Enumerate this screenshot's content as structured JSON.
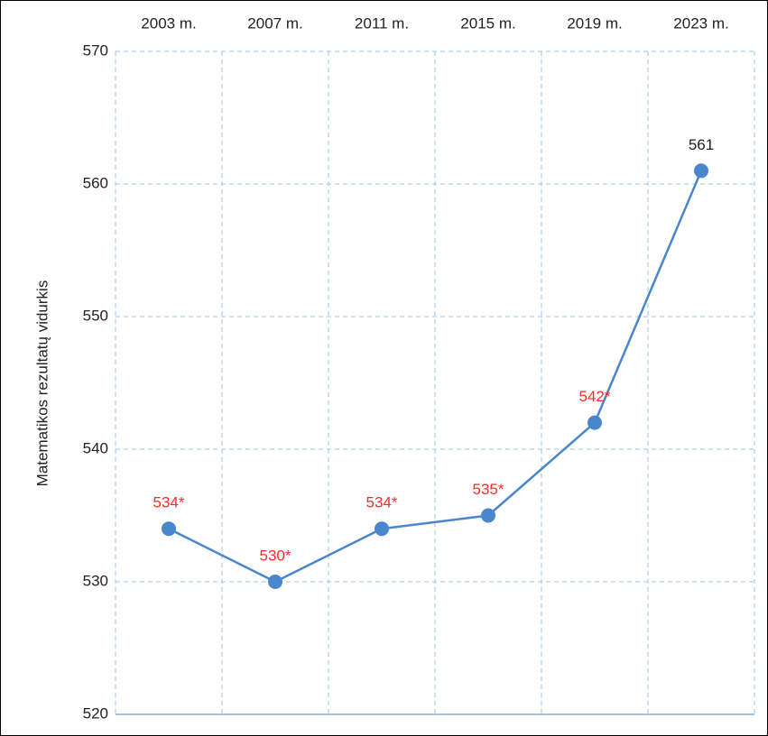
{
  "chart_data": {
    "type": "line",
    "y_label": "Matematikos rezultatų vidurkis",
    "categories": [
      "2003 m.",
      "2007 m.",
      "2011 m.",
      "2015 m.",
      "2019 m.",
      "2023 m."
    ],
    "series": [
      {
        "color": "#4a86cc",
        "values": [
          534,
          530,
          534,
          535,
          542,
          561
        ],
        "value_labels": [
          "534*",
          "530*",
          "534*",
          "535*",
          "542*",
          "561"
        ],
        "value_label_colors": [
          "#ff2a2a",
          "#ff2a2a",
          "#ff2a2a",
          "#ff2a2a",
          "#ff2a2a",
          "#222222"
        ]
      }
    ],
    "ylim": [
      520,
      570
    ],
    "yticks": [
      520,
      530,
      540,
      550,
      560,
      570
    ],
    "grid": true
  }
}
